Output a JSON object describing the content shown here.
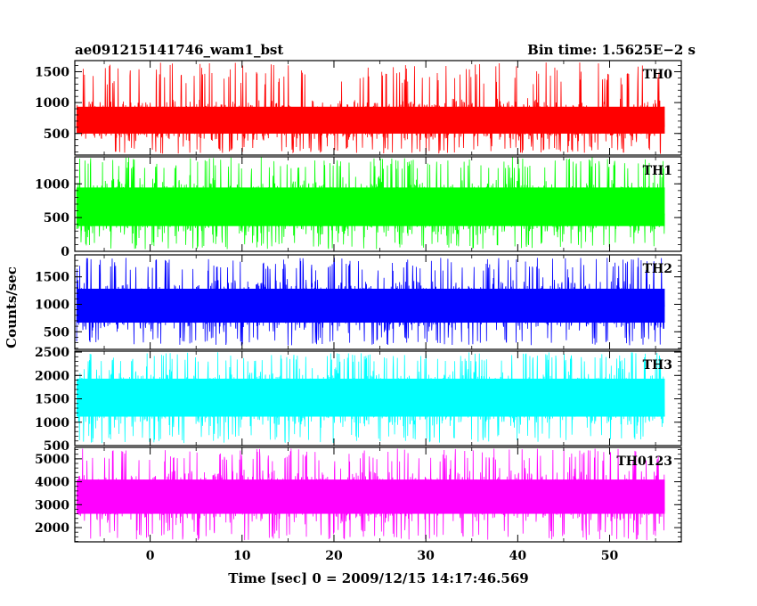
{
  "chart_data": {
    "type": "line",
    "title_left": "ae091215141746_wam1_bst",
    "title_right": "Bin time: 1.5625E−2 s",
    "xlabel": "Time [sec] 0 = 2009/12/15 14:17:46.569",
    "ylabel": "Counts/sec",
    "xlim": [
      -8.2,
      57.8
    ],
    "x_ticks": [
      "0",
      "10",
      "20",
      "30",
      "40",
      "50"
    ],
    "x_tick_values": [
      0,
      10,
      20,
      30,
      40,
      50
    ],
    "data_x_range": [
      -8,
      56
    ],
    "grid": false,
    "legend": "none",
    "panels": [
      {
        "name": "TH0",
        "color": "#ff0000",
        "ylim": [
          150,
          1680
        ],
        "yticks": [
          500,
          1000,
          1500
        ],
        "ytick_labels": [
          "500",
          "1000",
          "1500"
        ],
        "band": [
          380,
          1050
        ],
        "range": [
          170,
          1650
        ]
      },
      {
        "name": "TH1",
        "color": "#00ff00",
        "ylim": [
          0,
          1400
        ],
        "yticks": [
          0,
          500,
          1000
        ],
        "ytick_labels": [
          "0",
          "500",
          "1000"
        ],
        "band": [
          220,
          1100
        ],
        "range": [
          30,
          1400
        ]
      },
      {
        "name": "TH2",
        "color": "#0000ff",
        "ylim": [
          180,
          1900
        ],
        "yticks": [
          500,
          1000,
          1500
        ],
        "ytick_labels": [
          "500",
          "1000",
          "1500"
        ],
        "band": [
          500,
          1450
        ],
        "range": [
          250,
          1850
        ]
      },
      {
        "name": "TH3",
        "color": "#00ffff",
        "ylim": [
          500,
          2520
        ],
        "yticks": [
          500,
          1000,
          1500,
          2000,
          2500
        ],
        "ytick_labels": [
          "500",
          "1000",
          "1500",
          "2000",
          "2500"
        ],
        "band": [
          900,
          2150
        ],
        "range": [
          550,
          2500
        ]
      },
      {
        "name": "TH0123",
        "color": "#ff00ff",
        "ylim": [
          1380,
          5500
        ],
        "yticks": [
          2000,
          3000,
          4000,
          5000
        ],
        "ytick_labels": [
          "2000",
          "3000",
          "4000",
          "5000"
        ],
        "band": [
          2200,
          4500
        ],
        "range": [
          1450,
          5450
        ]
      }
    ]
  }
}
